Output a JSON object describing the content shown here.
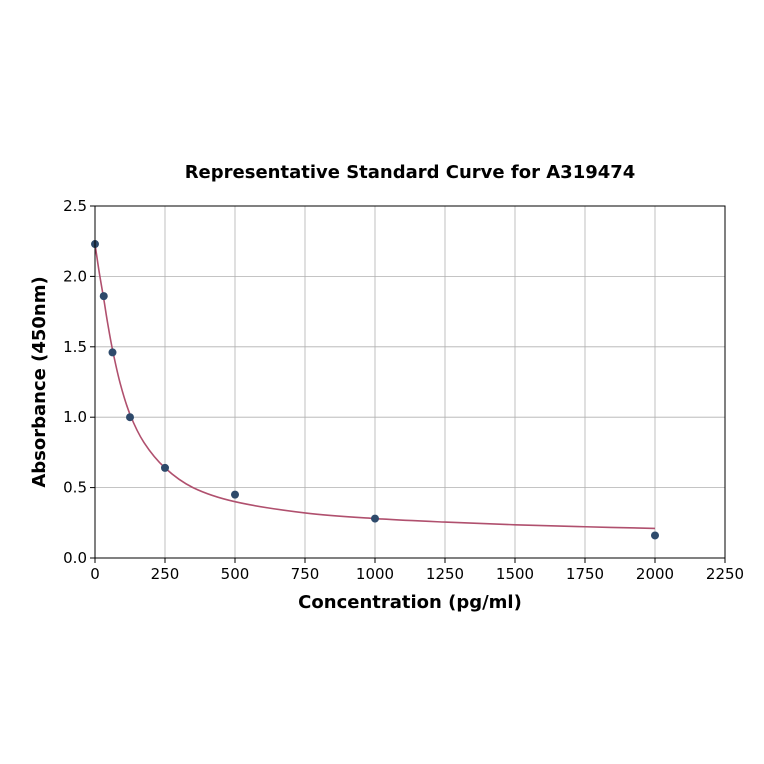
{
  "chart_data": {
    "type": "scatter",
    "title": "Representative Standard Curve for A319474",
    "xlabel": "Concentration (pg/ml)",
    "ylabel": "Absorbance (450nm)",
    "xlim": [
      0,
      2250
    ],
    "ylim": [
      0,
      2.5
    ],
    "xticks": [
      0,
      250,
      500,
      750,
      1000,
      1250,
      1500,
      1750,
      2000,
      2250
    ],
    "yticks": [
      0.0,
      0.5,
      1.0,
      1.5,
      2.0,
      2.5
    ],
    "xtick_labels": [
      "0",
      "250",
      "500",
      "750",
      "1000",
      "1250",
      "1500",
      "1750",
      "2000",
      "2250"
    ],
    "ytick_labels": [
      "0.0",
      "0.5",
      "1.0",
      "1.5",
      "2.0",
      "2.5"
    ],
    "grid": true,
    "series": [
      {
        "type": "scatter",
        "color": "#2e4a6b",
        "points": [
          {
            "x": 0,
            "y": 2.23
          },
          {
            "x": 31.25,
            "y": 1.86
          },
          {
            "x": 62.5,
            "y": 1.46
          },
          {
            "x": 125,
            "y": 1.0
          },
          {
            "x": 250,
            "y": 0.64
          },
          {
            "x": 500,
            "y": 0.45
          },
          {
            "x": 1000,
            "y": 0.28
          },
          {
            "x": 2000,
            "y": 0.16
          }
        ]
      },
      {
        "type": "line",
        "color": "#b0506e",
        "points": [
          {
            "x": 0,
            "y": 2.23
          },
          {
            "x": 15,
            "y": 2.03
          },
          {
            "x": 31.25,
            "y": 1.84
          },
          {
            "x": 45,
            "y": 1.67
          },
          {
            "x": 62.5,
            "y": 1.48
          },
          {
            "x": 90,
            "y": 1.24
          },
          {
            "x": 125,
            "y": 1.02
          },
          {
            "x": 175,
            "y": 0.82
          },
          {
            "x": 250,
            "y": 0.64
          },
          {
            "x": 350,
            "y": 0.5
          },
          {
            "x": 500,
            "y": 0.4
          },
          {
            "x": 750,
            "y": 0.32
          },
          {
            "x": 1000,
            "y": 0.28
          },
          {
            "x": 1250,
            "y": 0.255
          },
          {
            "x": 1500,
            "y": 0.236
          },
          {
            "x": 1750,
            "y": 0.222
          },
          {
            "x": 2000,
            "y": 0.21
          }
        ]
      }
    ]
  }
}
